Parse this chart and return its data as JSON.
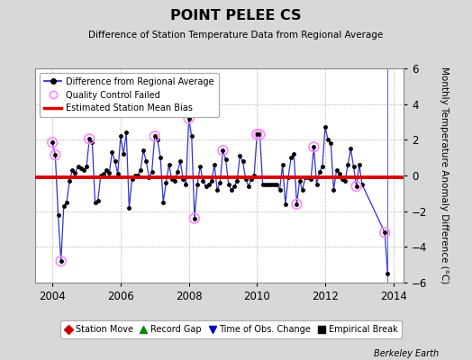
{
  "title": "POINT PELEE CS",
  "subtitle": "Difference of Station Temperature Data from Regional Average",
  "ylabel": "Monthly Temperature Anomaly Difference (°C)",
  "source_label": "Berkeley Earth",
  "ylim": [
    -6,
    6
  ],
  "xlim": [
    2003.5,
    2014.3
  ],
  "xticks": [
    2004,
    2006,
    2008,
    2010,
    2012,
    2014
  ],
  "yticks": [
    -6,
    -4,
    -2,
    0,
    2,
    4,
    6
  ],
  "bias_level": -0.12,
  "line_color": "#3333cc",
  "marker_color": "#000000",
  "qc_color": "#ff88ff",
  "bias_color": "#dd0000",
  "background_color": "#d8d8d8",
  "plot_bg_color": "#ffffff",
  "time_series": [
    [
      2004.0,
      1.85
    ],
    [
      2004.083,
      1.15
    ],
    [
      2004.167,
      -2.2
    ],
    [
      2004.25,
      -4.8
    ],
    [
      2004.333,
      -1.7
    ],
    [
      2004.417,
      -1.5
    ],
    [
      2004.5,
      -0.3
    ],
    [
      2004.583,
      0.3
    ],
    [
      2004.667,
      0.15
    ],
    [
      2004.75,
      0.5
    ],
    [
      2004.833,
      0.4
    ],
    [
      2004.917,
      0.3
    ],
    [
      2005.0,
      0.5
    ],
    [
      2005.083,
      2.05
    ],
    [
      2005.167,
      1.85
    ],
    [
      2005.25,
      -1.5
    ],
    [
      2005.333,
      -1.4
    ],
    [
      2005.417,
      0.0
    ],
    [
      2005.5,
      0.1
    ],
    [
      2005.583,
      0.3
    ],
    [
      2005.667,
      0.15
    ],
    [
      2005.75,
      1.3
    ],
    [
      2005.833,
      0.8
    ],
    [
      2005.917,
      0.1
    ],
    [
      2006.0,
      2.2
    ],
    [
      2006.083,
      1.2
    ],
    [
      2006.167,
      2.4
    ],
    [
      2006.25,
      -1.8
    ],
    [
      2006.333,
      -0.2
    ],
    [
      2006.417,
      0.0
    ],
    [
      2006.5,
      0.0
    ],
    [
      2006.583,
      0.3
    ],
    [
      2006.667,
      1.4
    ],
    [
      2006.75,
      0.8
    ],
    [
      2006.833,
      -0.1
    ],
    [
      2006.917,
      0.2
    ],
    [
      2007.0,
      2.2
    ],
    [
      2007.083,
      2.0
    ],
    [
      2007.167,
      1.0
    ],
    [
      2007.25,
      -1.5
    ],
    [
      2007.333,
      -0.4
    ],
    [
      2007.417,
      0.6
    ],
    [
      2007.5,
      -0.2
    ],
    [
      2007.583,
      -0.3
    ],
    [
      2007.667,
      0.2
    ],
    [
      2007.75,
      0.8
    ],
    [
      2007.833,
      -0.2
    ],
    [
      2007.917,
      -0.5
    ],
    [
      2008.0,
      3.2
    ],
    [
      2008.083,
      2.2
    ],
    [
      2008.167,
      -2.4
    ],
    [
      2008.25,
      -0.5
    ],
    [
      2008.333,
      0.5
    ],
    [
      2008.417,
      -0.3
    ],
    [
      2008.5,
      -0.6
    ],
    [
      2008.583,
      -0.5
    ],
    [
      2008.667,
      -0.3
    ],
    [
      2008.75,
      0.6
    ],
    [
      2008.833,
      -0.8
    ],
    [
      2008.917,
      -0.4
    ],
    [
      2009.0,
      1.4
    ],
    [
      2009.083,
      0.9
    ],
    [
      2009.167,
      -0.5
    ],
    [
      2009.25,
      -0.8
    ],
    [
      2009.333,
      -0.6
    ],
    [
      2009.417,
      -0.3
    ],
    [
      2009.5,
      1.1
    ],
    [
      2009.583,
      0.8
    ],
    [
      2009.667,
      -0.2
    ],
    [
      2009.75,
      -0.6
    ],
    [
      2009.833,
      -0.2
    ],
    [
      2009.917,
      0.0
    ],
    [
      2010.0,
      2.3
    ],
    [
      2010.083,
      2.3
    ],
    [
      2010.167,
      -0.5
    ],
    [
      2010.25,
      -0.5
    ],
    [
      2010.333,
      -0.5
    ],
    [
      2010.417,
      -0.5
    ],
    [
      2010.5,
      -0.5
    ],
    [
      2010.583,
      -0.5
    ],
    [
      2010.667,
      -0.8
    ],
    [
      2010.75,
      0.6
    ],
    [
      2010.833,
      -1.6
    ],
    [
      2010.917,
      -0.1
    ],
    [
      2011.0,
      1.0
    ],
    [
      2011.083,
      1.2
    ],
    [
      2011.167,
      -1.6
    ],
    [
      2011.25,
      -0.3
    ],
    [
      2011.333,
      -0.8
    ],
    [
      2011.417,
      -0.1
    ],
    [
      2011.5,
      -0.1
    ],
    [
      2011.583,
      -0.2
    ],
    [
      2011.667,
      1.6
    ],
    [
      2011.75,
      -0.5
    ],
    [
      2011.833,
      0.2
    ],
    [
      2011.917,
      0.5
    ],
    [
      2012.0,
      2.7
    ],
    [
      2012.083,
      2.0
    ],
    [
      2012.167,
      1.8
    ],
    [
      2012.25,
      -0.8
    ],
    [
      2012.333,
      0.3
    ],
    [
      2012.417,
      0.1
    ],
    [
      2012.5,
      -0.2
    ],
    [
      2012.583,
      -0.3
    ],
    [
      2012.667,
      0.6
    ],
    [
      2012.75,
      1.5
    ],
    [
      2012.833,
      0.5
    ],
    [
      2012.917,
      -0.6
    ],
    [
      2013.0,
      0.6
    ],
    [
      2013.083,
      -0.5
    ],
    [
      2013.75,
      -3.2
    ],
    [
      2013.833,
      -5.5
    ]
  ],
  "qc_failed": [
    [
      2004.0,
      1.85
    ],
    [
      2004.083,
      1.15
    ],
    [
      2004.25,
      -4.8
    ],
    [
      2005.083,
      2.05
    ],
    [
      2007.0,
      2.2
    ],
    [
      2008.0,
      3.2
    ],
    [
      2008.167,
      -2.4
    ],
    [
      2009.0,
      1.4
    ],
    [
      2010.0,
      2.3
    ],
    [
      2010.083,
      2.3
    ],
    [
      2011.167,
      -1.6
    ],
    [
      2011.667,
      1.6
    ],
    [
      2012.917,
      -0.6
    ],
    [
      2013.75,
      -3.2
    ]
  ],
  "legend_top": [
    {
      "label": "Difference from Regional Average",
      "color": "#3333cc",
      "type": "line_marker"
    },
    {
      "label": "Quality Control Failed",
      "color": "#ff88ff",
      "type": "circle_open"
    },
    {
      "label": "Estimated Station Mean Bias",
      "color": "#dd0000",
      "type": "line"
    }
  ],
  "legend_bottom": [
    {
      "label": "Station Move",
      "color": "#cc0000",
      "marker": "D"
    },
    {
      "label": "Record Gap",
      "color": "#008800",
      "marker": "^"
    },
    {
      "label": "Time of Obs. Change",
      "color": "#0000cc",
      "marker": "v"
    },
    {
      "label": "Empirical Break",
      "color": "#000000",
      "marker": "s"
    }
  ],
  "vertical_lines": [
    {
      "x": 2013.833,
      "color": "#6666ff",
      "lw": 0.8
    }
  ]
}
